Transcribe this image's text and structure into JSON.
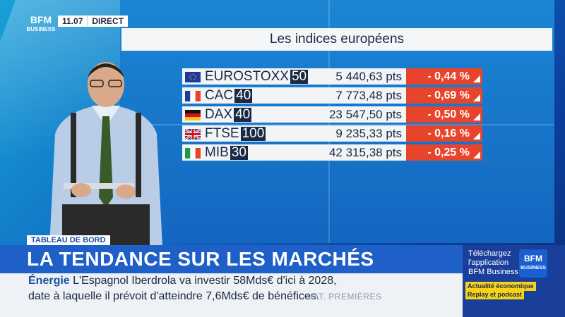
{
  "channel": {
    "logo_top": "BFM",
    "logo_bottom": "BUSINESS",
    "time": "11.07",
    "live": "DIRECT"
  },
  "panel": {
    "title": "Les indices européens"
  },
  "indices": [
    {
      "flag": "eu",
      "name": "EUROSTOXX",
      "num": "50",
      "value": "5 440,63 pts",
      "change": "- 0,44 %"
    },
    {
      "flag": "fr",
      "name": "CAC",
      "num": "40",
      "value": "7 773,48 pts",
      "change": "- 0,69 %"
    },
    {
      "flag": "de",
      "name": "DAX",
      "num": "40",
      "value": "23 547,50 pts",
      "change": "- 0,50 %"
    },
    {
      "flag": "uk",
      "name": "FTSE",
      "num": "100",
      "value": "9 235,33 pts",
      "change": "- 0,16 %"
    },
    {
      "flag": "it",
      "name": "MIB",
      "num": "30",
      "value": "42 315,38 pts",
      "change": "- 0,25 %"
    }
  ],
  "colors": {
    "negative": "#e8442c",
    "banner": "#1f5fc8"
  },
  "show": {
    "tag": "TABLEAU DE BORD",
    "title": "LA TENDANCE SUR LES MARCHÉS"
  },
  "ticker": {
    "label": "Énergie",
    "line1": " L'Espagnol Iberdrola va investir 58Mds€ d'ici à 2028,",
    "line2": "date à laquelle il prévoit d'atteindre 7,6Mds€ de bénéfices.",
    "mat": "MAT. PREMIÈRES"
  },
  "promo": {
    "line1": "Téléchargez",
    "line2": "l'application",
    "line3": "BFM Business",
    "badge1": "Actualité économique",
    "badge2": "Replay et podcast",
    "logo_top": "BFM",
    "logo_bottom": "BUSINESS"
  }
}
